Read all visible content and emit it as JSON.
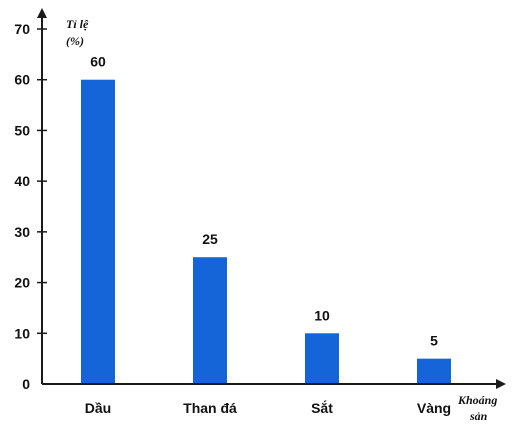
{
  "chart_data": {
    "type": "bar",
    "categories": [
      "Dầu",
      "Than đá",
      "Sắt",
      "Vàng"
    ],
    "values": [
      60,
      25,
      10,
      5
    ],
    "data_labels": [
      "60",
      "25",
      "10",
      "5"
    ],
    "yticks": [
      "0",
      "10",
      "20",
      "30",
      "40",
      "50",
      "60",
      "70"
    ],
    "ylim": [
      0,
      70
    ],
    "ylabel": [
      "Tỉ lệ",
      "(%)"
    ],
    "xlabel": [
      "Khoáng",
      "sản"
    ],
    "grid": false,
    "legend": "none",
    "bar_color": "#1565d8",
    "axis_color": "#1a1a1a"
  }
}
